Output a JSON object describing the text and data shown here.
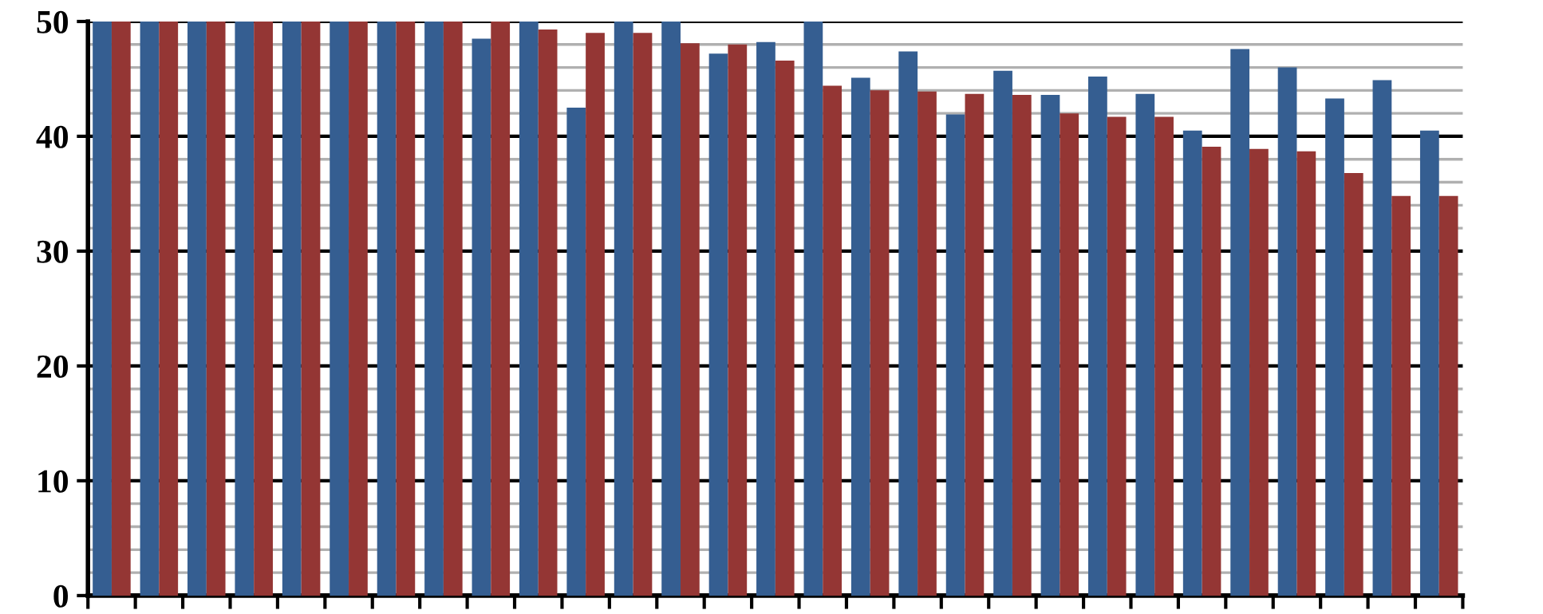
{
  "chart_data": {
    "type": "bar",
    "categories": [
      null,
      null,
      null,
      null,
      null,
      null,
      null,
      null,
      null,
      null,
      null,
      null,
      null,
      null,
      null,
      null,
      null,
      null,
      null,
      null,
      null,
      null,
      null,
      null,
      null,
      null,
      null,
      null,
      null
    ],
    "series": [
      {
        "color": "#355e91",
        "values": [
          50,
          50,
          50,
          50,
          50,
          50,
          50,
          50,
          48.5,
          50,
          42.5,
          50,
          50,
          47.2,
          48.2,
          50,
          45.1,
          47.4,
          41.9,
          45.7,
          43.6,
          45.2,
          43.7,
          40.5,
          47.6,
          46.0,
          43.3,
          44.9,
          40.5
        ]
      },
      {
        "color": "#943634",
        "values": [
          50,
          50,
          50,
          50,
          50,
          50,
          50,
          50,
          50,
          49.3,
          49.0,
          49.0,
          48.1,
          48.0,
          46.6,
          44.4,
          44.0,
          43.9,
          43.7,
          43.6,
          42.0,
          41.7,
          41.7,
          39.1,
          38.9,
          38.7,
          36.8,
          34.8,
          34.8
        ]
      }
    ],
    "ylim": [
      0,
      50
    ],
    "yticks": [
      0,
      {
        "value": 2,
        "label": null
      },
      {
        "value": 4,
        "label": null
      },
      {
        "value": 6,
        "label": null
      },
      {
        "value": 8,
        "label": null
      },
      10,
      {
        "value": 12,
        "label": null
      },
      {
        "value": 14,
        "label": null
      },
      {
        "value": 16,
        "label": null
      },
      {
        "value": 18,
        "label": null
      },
      20,
      {
        "value": 22,
        "label": null
      },
      {
        "value": 24,
        "label": null
      },
      {
        "value": 26,
        "label": null
      },
      {
        "value": 28,
        "label": null
      },
      30,
      {
        "value": 32,
        "label": null
      },
      {
        "value": 34,
        "label": null
      },
      {
        "value": 36,
        "label": null
      },
      {
        "value": 38,
        "label": null
      },
      40,
      {
        "value": 42,
        "label": null
      },
      {
        "value": 44,
        "label": null
      },
      {
        "value": 46,
        "label": null
      },
      {
        "value": 48,
        "label": null
      },
      50
    ],
    "grid": "y",
    "tick_labels": "y",
    "legend": false
  }
}
